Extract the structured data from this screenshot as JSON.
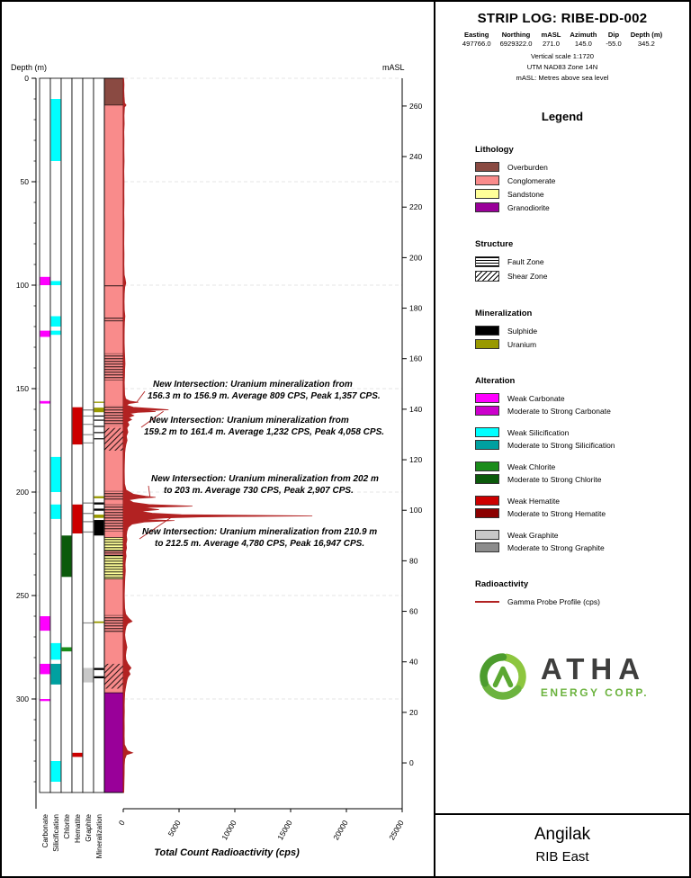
{
  "header": {
    "title": "STRIP LOG: RIBE-DD-002",
    "info_table": {
      "headers": [
        "Easting",
        "Northing",
        "mASL",
        "Azimuth",
        "Dip",
        "Depth (m)"
      ],
      "values": [
        "497766.0",
        "6929322.0",
        "271.0",
        "145.0",
        "-55.0",
        "345.2"
      ]
    },
    "notes": [
      "Vertical scale 1:1720",
      "UTM NAD83 Zone 14N",
      "mASL: Metres above sea level"
    ]
  },
  "legend": {
    "title": "Legend",
    "lithology": {
      "title": "Lithology",
      "items": [
        {
          "label": "Overburden",
          "color": "#8A4A42"
        },
        {
          "label": "Conglomerate",
          "color": "#F98B8B"
        },
        {
          "label": "Sandstone",
          "color": "#FFFF99"
        },
        {
          "label": "Granodiorite",
          "color": "#990099"
        }
      ]
    },
    "structure": {
      "title": "Structure",
      "items": [
        {
          "label": "Fault Zone",
          "pattern": "fault"
        },
        {
          "label": "Shear Zone",
          "pattern": "shear"
        }
      ]
    },
    "mineralization": {
      "title": "Mineralization",
      "items": [
        {
          "label": "Sulphide",
          "color": "#000000"
        },
        {
          "label": "Uranium",
          "color": "#999900"
        }
      ]
    },
    "alteration": {
      "title": "Alteration",
      "items": [
        {
          "label": "Weak Carbonate",
          "color": "#FF00FF"
        },
        {
          "label": "Moderate to Strong Carbonate",
          "color": "#CC00CC"
        },
        {
          "label": "Weak Silicification",
          "color": "#00FFFF"
        },
        {
          "label": "Moderate to Strong Silicification",
          "color": "#00A0A0"
        },
        {
          "label": "Weak Chlorite",
          "color": "#1A8C1A"
        },
        {
          "label": "Moderate to Strong Chlorite",
          "color": "#0B5A0B"
        },
        {
          "label": "Weak Hematite",
          "color": "#CC0000"
        },
        {
          "label": "Moderate to Strong Hematite",
          "color": "#8B0000"
        },
        {
          "label": "Weak Graphite",
          "color": "#C8C8C8"
        },
        {
          "label": "Moderate to Strong Graphite",
          "color": "#8C8C8C"
        }
      ]
    },
    "radioactivity": {
      "title": "Radioactivity",
      "items": [
        {
          "label": "Gamma Probe Profile (cps)",
          "color": "#B22222",
          "type": "line"
        }
      ]
    }
  },
  "logo": {
    "name": "ATHA",
    "sub": "ENERGY CORP.",
    "green": "#6CB33F",
    "dark": "#3E3E3D"
  },
  "footer": {
    "project": "Angilak",
    "area": "RIB East"
  },
  "chart_data": {
    "type": "strip-log",
    "depth_axis": {
      "label": "Depth (m)",
      "min": 0,
      "max": 345.2,
      "major_ticks": [
        0,
        50,
        100,
        150,
        200,
        250,
        300
      ],
      "minor_tick_step": 10
    },
    "masl_axis": {
      "label": "mASL",
      "collar_masl": 271.0,
      "dip_sin": 0.819,
      "ticks": [
        260,
        240,
        220,
        200,
        180,
        160,
        140,
        120,
        100,
        80,
        60,
        40,
        20,
        0
      ]
    },
    "cps_axis": {
      "label": "Total Count Radioactivity (cps)",
      "min": 0,
      "max": 25000,
      "ticks": [
        0,
        5000,
        10000,
        15000,
        20000,
        25000
      ]
    },
    "tracks": [
      {
        "label": "Carbonate",
        "intervals": [
          {
            "from": 96,
            "to": 100,
            "color": "#FF00FF"
          },
          {
            "from": 122,
            "to": 125,
            "color": "#FF00FF"
          },
          {
            "from": 156,
            "to": 157.2,
            "color": "#FF00FF"
          },
          {
            "from": 260,
            "to": 267,
            "color": "#FF00FF"
          },
          {
            "from": 283,
            "to": 288,
            "color": "#FF00FF"
          },
          {
            "from": 300,
            "to": 301,
            "color": "#FF00FF"
          }
        ]
      },
      {
        "label": "Silicification",
        "intervals": [
          {
            "from": 10,
            "to": 40,
            "color": "#00FFFF"
          },
          {
            "from": 98,
            "to": 100,
            "color": "#00FFFF"
          },
          {
            "from": 115,
            "to": 120,
            "color": "#00FFFF"
          },
          {
            "from": 122,
            "to": 124,
            "color": "#00FFFF"
          },
          {
            "from": 183,
            "to": 200,
            "color": "#00FFFF"
          },
          {
            "from": 206,
            "to": 213,
            "color": "#00FFFF"
          },
          {
            "from": 273,
            "to": 281,
            "color": "#00FFFF"
          },
          {
            "from": 283,
            "to": 293,
            "color": "#00A0A0"
          },
          {
            "from": 330,
            "to": 340,
            "color": "#00FFFF"
          }
        ]
      },
      {
        "label": "Chlorite",
        "intervals": [
          {
            "from": 221,
            "to": 241,
            "color": "#0B5A0B"
          },
          {
            "from": 275,
            "to": 277,
            "color": "#1A8C1A"
          }
        ]
      },
      {
        "label": "Hematite",
        "intervals": [
          {
            "from": 159,
            "to": 177,
            "color": "#CC0000"
          },
          {
            "from": 206,
            "to": 220,
            "color": "#CC0000"
          },
          {
            "from": 326,
            "to": 328,
            "color": "#CC0000"
          }
        ]
      },
      {
        "label": "Graphite",
        "intervals": [
          {
            "from": 160,
            "to": 160.6,
            "color": "#8C8C8C"
          },
          {
            "from": 163,
            "to": 163.5,
            "color": "#8C8C8C"
          },
          {
            "from": 167,
            "to": 167.5,
            "color": "#8C8C8C"
          },
          {
            "from": 172,
            "to": 172.5,
            "color": "#8C8C8C"
          },
          {
            "from": 176,
            "to": 176.5,
            "color": "#8C8C8C"
          },
          {
            "from": 205,
            "to": 205.6,
            "color": "#8C8C8C"
          },
          {
            "from": 210,
            "to": 210.6,
            "color": "#8C8C8C"
          },
          {
            "from": 214,
            "to": 214.6,
            "color": "#8C8C8C"
          },
          {
            "from": 219,
            "to": 219.6,
            "color": "#8C8C8C"
          },
          {
            "from": 263,
            "to": 263.5,
            "color": "#8C8C8C"
          },
          {
            "from": 285,
            "to": 292,
            "color": "#C8C8C8"
          }
        ]
      },
      {
        "label": "Mineralization",
        "intervals": [
          {
            "from": 156.3,
            "to": 156.9,
            "color": "#999900"
          },
          {
            "from": 159.2,
            "to": 161.4,
            "color": "#999900"
          },
          {
            "from": 163,
            "to": 163.5,
            "color": "#000000"
          },
          {
            "from": 165,
            "to": 165.5,
            "color": "#000000"
          },
          {
            "from": 168,
            "to": 168.5,
            "color": "#000000"
          },
          {
            "from": 171,
            "to": 171.5,
            "color": "#000000"
          },
          {
            "from": 174,
            "to": 174.5,
            "color": "#000000"
          },
          {
            "from": 202,
            "to": 203,
            "color": "#999900"
          },
          {
            "from": 205,
            "to": 206,
            "color": "#000000"
          },
          {
            "from": 208,
            "to": 209,
            "color": "#000000"
          },
          {
            "from": 210.9,
            "to": 212.5,
            "color": "#999900"
          },
          {
            "from": 213.5,
            "to": 221,
            "color": "#000000"
          },
          {
            "from": 262.5,
            "to": 263.3,
            "color": "#999900"
          },
          {
            "from": 285,
            "to": 286,
            "color": "#000000"
          },
          {
            "from": 289,
            "to": 290,
            "color": "#000000"
          }
        ]
      }
    ],
    "lithology": {
      "intervals": [
        {
          "from": 0,
          "to": 13,
          "unit": "Overburden",
          "color": "#8A4A42"
        },
        {
          "from": 13,
          "to": 222,
          "unit": "Conglomerate",
          "color": "#F98B8B"
        },
        {
          "from": 222,
          "to": 228.5,
          "unit": "Sandstone",
          "color": "#FFFF99"
        },
        {
          "from": 228.5,
          "to": 230.5,
          "unit": "Conglomerate",
          "color": "#F98B8B"
        },
        {
          "from": 230.5,
          "to": 242,
          "unit": "Sandstone",
          "color": "#FFFF99"
        },
        {
          "from": 242,
          "to": 297,
          "unit": "Conglomerate",
          "color": "#F98B8B"
        },
        {
          "from": 297,
          "to": 345.2,
          "unit": "Granodiorite",
          "color": "#990099"
        }
      ]
    },
    "structure_zones": [
      {
        "from": 100,
        "to": 100.6,
        "type": "fault"
      },
      {
        "from": 115,
        "to": 117.5,
        "type": "fault"
      },
      {
        "from": 133,
        "to": 146,
        "type": "fault"
      },
      {
        "from": 158,
        "to": 168,
        "type": "fault"
      },
      {
        "from": 169,
        "to": 180,
        "type": "shear"
      },
      {
        "from": 199.5,
        "to": 204,
        "type": "fault"
      },
      {
        "from": 206,
        "to": 219,
        "type": "fault"
      },
      {
        "from": 222,
        "to": 242,
        "type": "fault"
      },
      {
        "from": 259.5,
        "to": 268,
        "type": "fault"
      },
      {
        "from": 283,
        "to": 295,
        "type": "shear"
      }
    ],
    "gamma": {
      "color": "#B22222",
      "points": [
        [
          0,
          40
        ],
        [
          3,
          70
        ],
        [
          6,
          55
        ],
        [
          9,
          80
        ],
        [
          12,
          120
        ],
        [
          13,
          260
        ],
        [
          14,
          110
        ],
        [
          18,
          70
        ],
        [
          22,
          85
        ],
        [
          26,
          60
        ],
        [
          30,
          75
        ],
        [
          35,
          65
        ],
        [
          40,
          80
        ],
        [
          45,
          60
        ],
        [
          50,
          70
        ],
        [
          55,
          65
        ],
        [
          60,
          75
        ],
        [
          65,
          60
        ],
        [
          70,
          70
        ],
        [
          75,
          65
        ],
        [
          80,
          60
        ],
        [
          85,
          70
        ],
        [
          90,
          65
        ],
        [
          95,
          90
        ],
        [
          97,
          170
        ],
        [
          99,
          230
        ],
        [
          101,
          140
        ],
        [
          104,
          95
        ],
        [
          108,
          80
        ],
        [
          112,
          100
        ],
        [
          115,
          150
        ],
        [
          118,
          110
        ],
        [
          121,
          95
        ],
        [
          124,
          85
        ],
        [
          128,
          90
        ],
        [
          132,
          110
        ],
        [
          135,
          140
        ],
        [
          138,
          160
        ],
        [
          141,
          130
        ],
        [
          144,
          120
        ],
        [
          147,
          100
        ],
        [
          150,
          110
        ],
        [
          153,
          130
        ],
        [
          155,
          220
        ],
        [
          156,
          600
        ],
        [
          156.6,
          1357
        ],
        [
          157.2,
          500
        ],
        [
          158,
          320
        ],
        [
          159,
          900
        ],
        [
          159.6,
          2600
        ],
        [
          160.2,
          4058
        ],
        [
          160.7,
          1700
        ],
        [
          161.1,
          2900
        ],
        [
          161.5,
          1300
        ],
        [
          162,
          600
        ],
        [
          163,
          950
        ],
        [
          164,
          480
        ],
        [
          165,
          750
        ],
        [
          166,
          380
        ],
        [
          167.5,
          520
        ],
        [
          169,
          330
        ],
        [
          171,
          420
        ],
        [
          173,
          280
        ],
        [
          175,
          350
        ],
        [
          177,
          240
        ],
        [
          179,
          180
        ],
        [
          181,
          140
        ],
        [
          184,
          120
        ],
        [
          187,
          105
        ],
        [
          190,
          95
        ],
        [
          193,
          105
        ],
        [
          196,
          120
        ],
        [
          199,
          260
        ],
        [
          201,
          900
        ],
        [
          202,
          2000
        ],
        [
          202.5,
          2907
        ],
        [
          203,
          1400
        ],
        [
          203.8,
          500
        ],
        [
          205,
          900
        ],
        [
          206,
          2300
        ],
        [
          206.8,
          6200
        ],
        [
          207.5,
          1800
        ],
        [
          208.5,
          3200
        ],
        [
          209.3,
          1500
        ],
        [
          210.2,
          2600
        ],
        [
          210.9,
          5200
        ],
        [
          211.5,
          16947
        ],
        [
          212,
          7000
        ],
        [
          212.5,
          3800
        ],
        [
          213.2,
          1700
        ],
        [
          213.8,
          4600
        ],
        [
          214.5,
          1900
        ],
        [
          215.5,
          800
        ],
        [
          217,
          450
        ],
        [
          219,
          330
        ],
        [
          221,
          280
        ],
        [
          223,
          330
        ],
        [
          225,
          260
        ],
        [
          227,
          300
        ],
        [
          229,
          220
        ],
        [
          231,
          260
        ],
        [
          233,
          200
        ],
        [
          235,
          170
        ],
        [
          238,
          190
        ],
        [
          241,
          150
        ],
        [
          244,
          130
        ],
        [
          247,
          110
        ],
        [
          250,
          100
        ],
        [
          253,
          110
        ],
        [
          256,
          130
        ],
        [
          259,
          220
        ],
        [
          261,
          500
        ],
        [
          262.5,
          800
        ],
        [
          263.5,
          420
        ],
        [
          265,
          260
        ],
        [
          267,
          180
        ],
        [
          269,
          140
        ],
        [
          271,
          180
        ],
        [
          273,
          260
        ],
        [
          275,
          330
        ],
        [
          277,
          260
        ],
        [
          279,
          210
        ],
        [
          281,
          240
        ],
        [
          283,
          420
        ],
        [
          285,
          700
        ],
        [
          286.5,
          480
        ],
        [
          288,
          620
        ],
        [
          289.5,
          420
        ],
        [
          291,
          330
        ],
        [
          293,
          260
        ],
        [
          295,
          190
        ],
        [
          297,
          140
        ],
        [
          300,
          110
        ],
        [
          303,
          95
        ],
        [
          306,
          105
        ],
        [
          310,
          90
        ],
        [
          314,
          100
        ],
        [
          318,
          85
        ],
        [
          322,
          110
        ],
        [
          325,
          380
        ],
        [
          326,
          850
        ],
        [
          327,
          280
        ],
        [
          329,
          140
        ],
        [
          332,
          100
        ],
        [
          336,
          85
        ],
        [
          340,
          75
        ],
        [
          344,
          60
        ],
        [
          345.2,
          50
        ]
      ]
    },
    "annotations": [
      {
        "line1": "New Intersection: Uranium mineralization from",
        "line2": "156.3 m to 156.9 m. Average 809 CPS, Peak 1,357 CPS.",
        "text_x": 162,
        "text_y": 428,
        "dx1": 6,
        "dx2": 0,
        "target_depth": 156.6,
        "target_cps": 1200
      },
      {
        "line1": "New Intersection: Uranium mineralization from",
        "line2": "159.2 m to 161.4 m. Average 1,232 CPS, Peak 4,058 CPS.",
        "text_x": 158,
        "text_y": 468,
        "dx1": 6,
        "dx2": 0,
        "target_depth": 161.0,
        "target_cps": 3600
      },
      {
        "line1": "New Intersection: Uranium mineralization from 202 m",
        "line2": "to 203 m. Average 730 CPS, Peak 2,907 CPS.",
        "text_x": 166,
        "text_y": 533,
        "dx1": 0,
        "dx2": 14,
        "target_depth": 202.5,
        "target_cps": 2400
      },
      {
        "line1": "New Intersection: Uranium mineralization from 210.9 m",
        "line2": "to 212.5 m. Average 4,780 CPS, Peak 16,947 CPS.",
        "text_x": 156,
        "text_y": 592,
        "dx1": 0,
        "dx2": 14,
        "target_depth": 211.5,
        "target_cps": 4500
      }
    ]
  }
}
